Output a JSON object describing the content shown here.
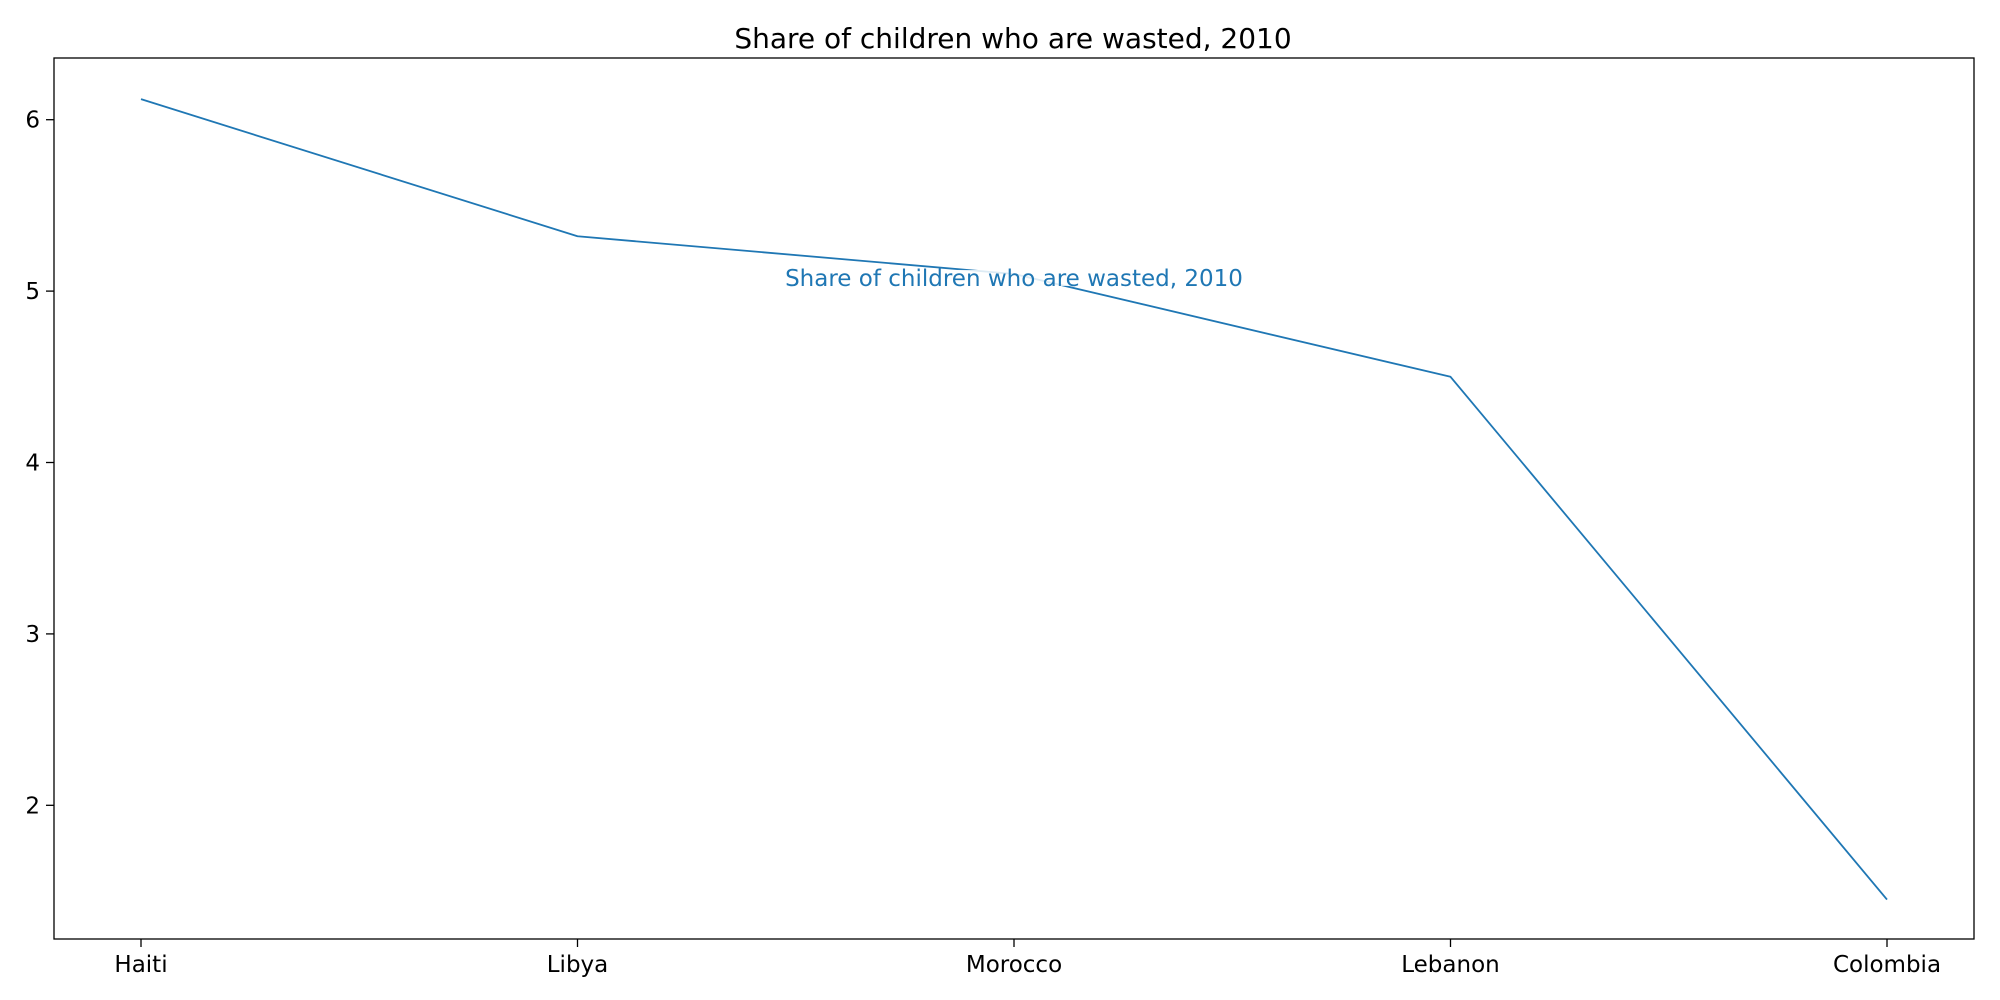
{
  "chart_data": {
    "type": "line",
    "title": "Share of children who are wasted, 2010",
    "xlabel": "",
    "ylabel": "",
    "categories": [
      "Haiti",
      "Libya",
      "Morocco",
      "Lebanon",
      "Colombia"
    ],
    "series": [
      {
        "name": "Share of children who are wasted, 2010",
        "values": [
          6.12,
          5.32,
          5.1,
          4.5,
          1.45
        ],
        "color": "#1f77b4"
      }
    ],
    "ylim": [
      1.22,
      6.36
    ],
    "yticks": [
      "2",
      "3",
      "4",
      "5",
      "6"
    ],
    "grid": false,
    "legend": "none",
    "series_label_placement": "center-inline"
  }
}
